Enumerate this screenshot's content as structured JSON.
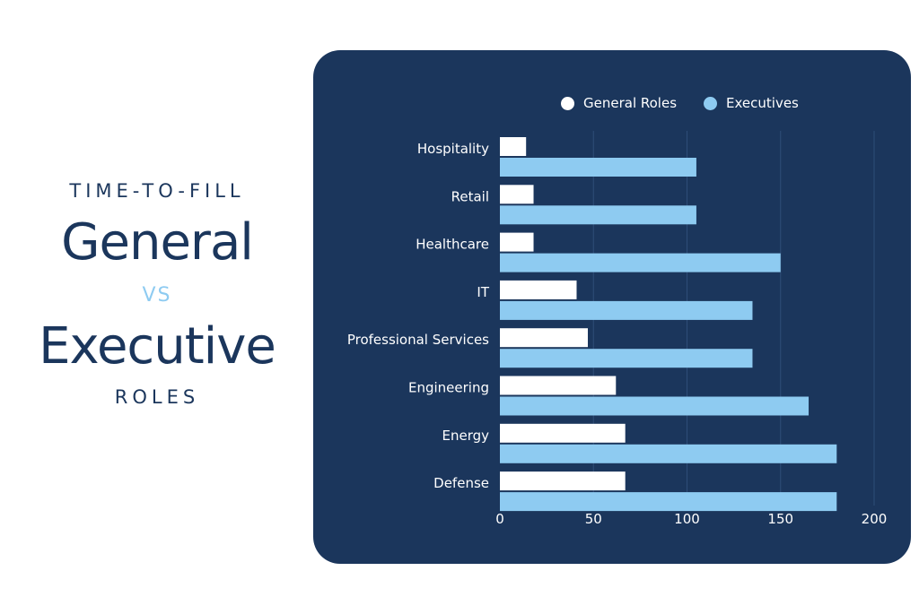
{
  "heading": {
    "line1": "TIME-TO-FILL",
    "line2": "General",
    "line3": "vs",
    "line4": "Executive",
    "line5": "ROLES"
  },
  "colors": {
    "navy": "#1b365c",
    "general": "#ffffff",
    "executives": "#8ecbf1",
    "grid": "#2e4d78"
  },
  "chart_data": {
    "type": "bar",
    "orientation": "horizontal",
    "categories": [
      "Hospitality",
      "Retail",
      "Healthcare",
      "IT",
      "Professional Services",
      "Engineering",
      "Energy",
      "Defense"
    ],
    "series": [
      {
        "name": "General Roles",
        "values": [
          14,
          18,
          18,
          41,
          47,
          62,
          67,
          67
        ]
      },
      {
        "name": "Executives",
        "values": [
          105,
          105,
          150,
          135,
          135,
          165,
          180,
          180
        ]
      }
    ],
    "xlim": [
      0,
      200
    ],
    "xticks": [
      "0",
      "50",
      "100",
      "150",
      "200"
    ],
    "legend": "top",
    "grid": true
  }
}
